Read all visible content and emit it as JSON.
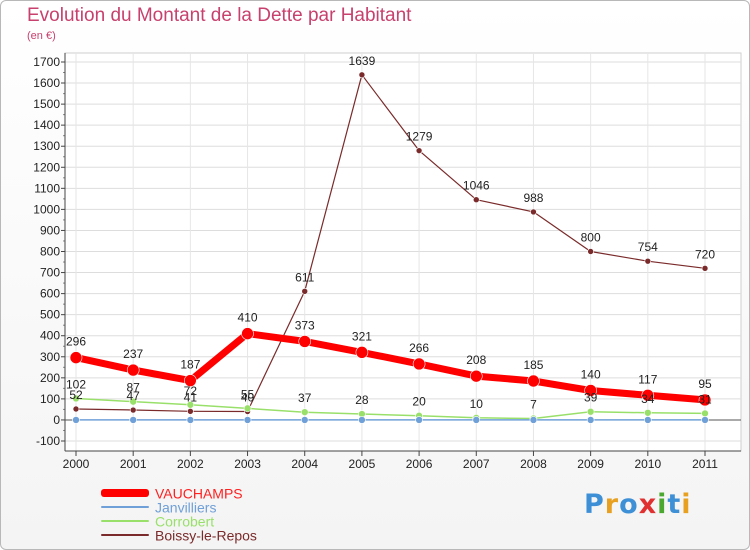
{
  "chart_data": {
    "type": "line",
    "title": "Evolution du Montant de la Dette par Habitant",
    "unit_label": "(en €)",
    "x": [
      "2000",
      "2001",
      "2002",
      "2003",
      "2004",
      "2005",
      "2006",
      "2007",
      "2008",
      "2009",
      "2010",
      "2011"
    ],
    "ylim": [
      -100,
      1700
    ],
    "yticks": [
      -100,
      0,
      100,
      200,
      300,
      400,
      500,
      600,
      700,
      800,
      900,
      1000,
      1100,
      1200,
      1300,
      1400,
      1500,
      1600,
      1700
    ],
    "grid": true,
    "legend_position": "bottom-left",
    "series": [
      {
        "name": "VAUCHAMPS",
        "color": "#ff0000",
        "values": [
          296,
          237,
          187,
          410,
          373,
          321,
          266,
          208,
          185,
          140,
          117,
          95
        ]
      },
      {
        "name": "Janvilliers",
        "color": "#6fa0d8",
        "values": [
          0,
          0,
          0,
          0,
          0,
          0,
          0,
          0,
          0,
          0,
          0,
          0
        ]
      },
      {
        "name": "Corrobert",
        "color": "#99e06a",
        "values": [
          102,
          87,
          72,
          55,
          37,
          28,
          20,
          10,
          7,
          39,
          34,
          31
        ]
      },
      {
        "name": "Boissy-le-Repos",
        "color": "#7a2a2a",
        "values": [
          52,
          47,
          41,
          40,
          611,
          1639,
          1279,
          1046,
          988,
          800,
          754,
          720
        ]
      }
    ]
  },
  "brand": {
    "text": "Proxiti",
    "colors": [
      "#3d8fd6",
      "#e8a020",
      "#3d8fd6",
      "#e03030",
      "#4aa830",
      "#3d8fd6",
      "#e8a020"
    ]
  }
}
